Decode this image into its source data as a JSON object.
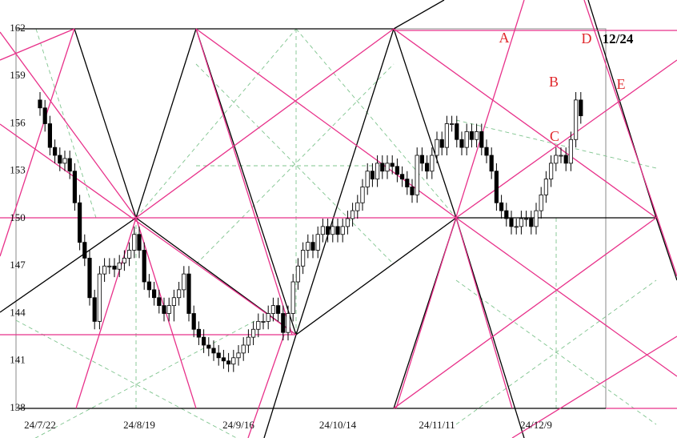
{
  "chart_data": {
    "type": "candlestick",
    "categories": [
      "24/7/22",
      null,
      null,
      null,
      null,
      null,
      null,
      null,
      null,
      null,
      null,
      null,
      null,
      null,
      null,
      null,
      null,
      null,
      null,
      null,
      "24/8/19",
      null,
      null,
      null,
      null,
      null,
      null,
      null,
      null,
      null,
      null,
      null,
      null,
      null,
      null,
      null,
      null,
      null,
      null,
      null,
      "24/9/16",
      null,
      null,
      null,
      null,
      null,
      null,
      null,
      null,
      null,
      null,
      null,
      null,
      null,
      null,
      null,
      null,
      null,
      null,
      null,
      "24/10/14",
      null,
      null,
      null,
      null,
      null,
      null,
      null,
      null,
      null,
      null,
      null,
      null,
      null,
      null,
      null,
      null,
      null,
      null,
      null,
      "24/11/11",
      null,
      null,
      null,
      null,
      null,
      null,
      null,
      null,
      null,
      null,
      null,
      null,
      null,
      null,
      null,
      null,
      null,
      null,
      null,
      "24/12/9",
      null,
      null,
      null,
      null,
      null,
      null,
      null,
      null,
      null
    ],
    "open": [
      157.5,
      157,
      156,
      154.5,
      154,
      153.5,
      153.8,
      153,
      151,
      148.5,
      147.5,
      145,
      143.5,
      146.5,
      147,
      147,
      146.8,
      147.2,
      147.5,
      148,
      149,
      148,
      146,
      145.5,
      145,
      144.5,
      144,
      144.5,
      145,
      145.5,
      146.5,
      144,
      143,
      142.5,
      142,
      141.8,
      141.5,
      141.2,
      141,
      140.8,
      141.2,
      141.5,
      142,
      142.5,
      143,
      143.5,
      143.5,
      144,
      144.5,
      144,
      142.8,
      144,
      146,
      147,
      148,
      148.5,
      148,
      149,
      149.5,
      149,
      149.5,
      149,
      149.5,
      150,
      150.5,
      151,
      152,
      153,
      152.5,
      153.5,
      153,
      153.5,
      153.3,
      152.8,
      152.5,
      152,
      151.5,
      154,
      153.5,
      153,
      154,
      155,
      154.5,
      156,
      156,
      155,
      154.5,
      155.5,
      155,
      155.5,
      154.5,
      154,
      153,
      151,
      150.5,
      150,
      149.5,
      149.5,
      150,
      150,
      149.5,
      150.5,
      151.5,
      152.5,
      153.5,
      154,
      154,
      153.5,
      155,
      157.5
    ],
    "high": [
      158,
      157.5,
      156.5,
      155,
      154.5,
      154.3,
      154.3,
      153.5,
      151.5,
      149,
      148,
      145.5,
      147,
      147.5,
      147.5,
      147.5,
      147.7,
      148,
      148.5,
      149.5,
      149.5,
      148.5,
      146.5,
      146,
      145.5,
      145,
      145,
      145.5,
      146,
      147,
      147,
      144.5,
      143.5,
      143,
      142.5,
      142.3,
      142,
      141.7,
      141.5,
      141.7,
      142,
      142.5,
      143,
      143.5,
      144,
      144,
      144.5,
      145,
      145,
      144.5,
      144.5,
      146.5,
      147.5,
      148.5,
      149,
      149,
      149.5,
      150,
      150,
      150,
      150,
      150,
      150.5,
      151,
      151.5,
      152.5,
      153.5,
      153.5,
      154,
      154,
      154,
      154,
      153.8,
      153.3,
      153,
      152.5,
      154.5,
      154.5,
      154,
      154.5,
      155.5,
      155.5,
      156.5,
      156.5,
      156.5,
      155.5,
      156,
      156,
      156,
      156,
      155,
      154.5,
      153.5,
      151.5,
      151,
      150.5,
      150,
      150.5,
      150.5,
      150.5,
      151,
      152,
      153,
      154,
      154.5,
      154.5,
      154.5,
      155.5,
      158,
      158
    ],
    "low": [
      156.5,
      155.5,
      154,
      153.5,
      153,
      153,
      152.5,
      150.5,
      148,
      147,
      144.5,
      143,
      143,
      146,
      146.5,
      146.3,
      146.3,
      146.7,
      147,
      147.5,
      147.5,
      145.5,
      145,
      144.5,
      144,
      143.5,
      143.5,
      143.5,
      144.5,
      145,
      143.5,
      142.5,
      142,
      141.5,
      141.3,
      141,
      140.7,
      140.5,
      140.3,
      140.3,
      140.7,
      141,
      141.5,
      142,
      142.5,
      143,
      143,
      143.5,
      143.5,
      142.3,
      142.3,
      143.5,
      145.5,
      146.5,
      147.5,
      147.5,
      147.5,
      148.5,
      148.5,
      148.5,
      148.5,
      148.5,
      149,
      149.5,
      150,
      150.5,
      151.5,
      152,
      152,
      152.5,
      152.5,
      152.8,
      152.3,
      152,
      151.5,
      151,
      151,
      153,
      152.5,
      152.5,
      153.5,
      154,
      154,
      155.5,
      154.5,
      154,
      154,
      154.5,
      154.5,
      154,
      153.5,
      152.5,
      150.5,
      150,
      149.5,
      149,
      149,
      149,
      149.5,
      149,
      149,
      150,
      151,
      152,
      153,
      153.5,
      153,
      153,
      154.5,
      156
    ],
    "close": [
      157,
      156,
      154.5,
      154,
      153.5,
      153.8,
      153,
      151,
      148.5,
      147.5,
      145,
      143.5,
      146.5,
      147,
      147,
      146.8,
      147.2,
      147.5,
      148,
      149,
      148,
      146,
      145.5,
      145,
      144.5,
      144,
      144.5,
      145,
      145.5,
      146.5,
      144,
      143,
      142.5,
      142,
      141.8,
      141.5,
      141.2,
      141,
      140.8,
      141.2,
      141.5,
      142,
      142.5,
      143,
      143.5,
      143.5,
      144,
      144.5,
      144,
      142.8,
      144,
      146,
      147,
      148,
      148.5,
      148,
      149,
      149.5,
      149,
      149.5,
      149,
      149.5,
      150,
      150.5,
      151,
      152,
      153,
      152.5,
      153.5,
      153,
      153.5,
      153.3,
      152.8,
      152.5,
      152,
      151.5,
      154,
      153.5,
      153,
      154,
      155,
      154.5,
      156,
      156,
      155,
      154.5,
      155.5,
      155,
      155.5,
      154.5,
      154,
      153,
      151,
      150.5,
      150,
      149.5,
      149.5,
      150,
      150,
      149.5,
      150.5,
      151.5,
      152.5,
      153.5,
      154,
      154,
      153.5,
      155,
      157.5,
      156.5
    ],
    "ylim": [
      138,
      162
    ],
    "yticks": [
      138,
      141,
      144,
      147,
      150,
      153,
      156,
      159,
      162
    ],
    "up_color": "#ffffff",
    "down_color": "#000000",
    "annotations": [
      "A",
      "B",
      "C",
      "D",
      "E",
      "12/24"
    ]
  }
}
